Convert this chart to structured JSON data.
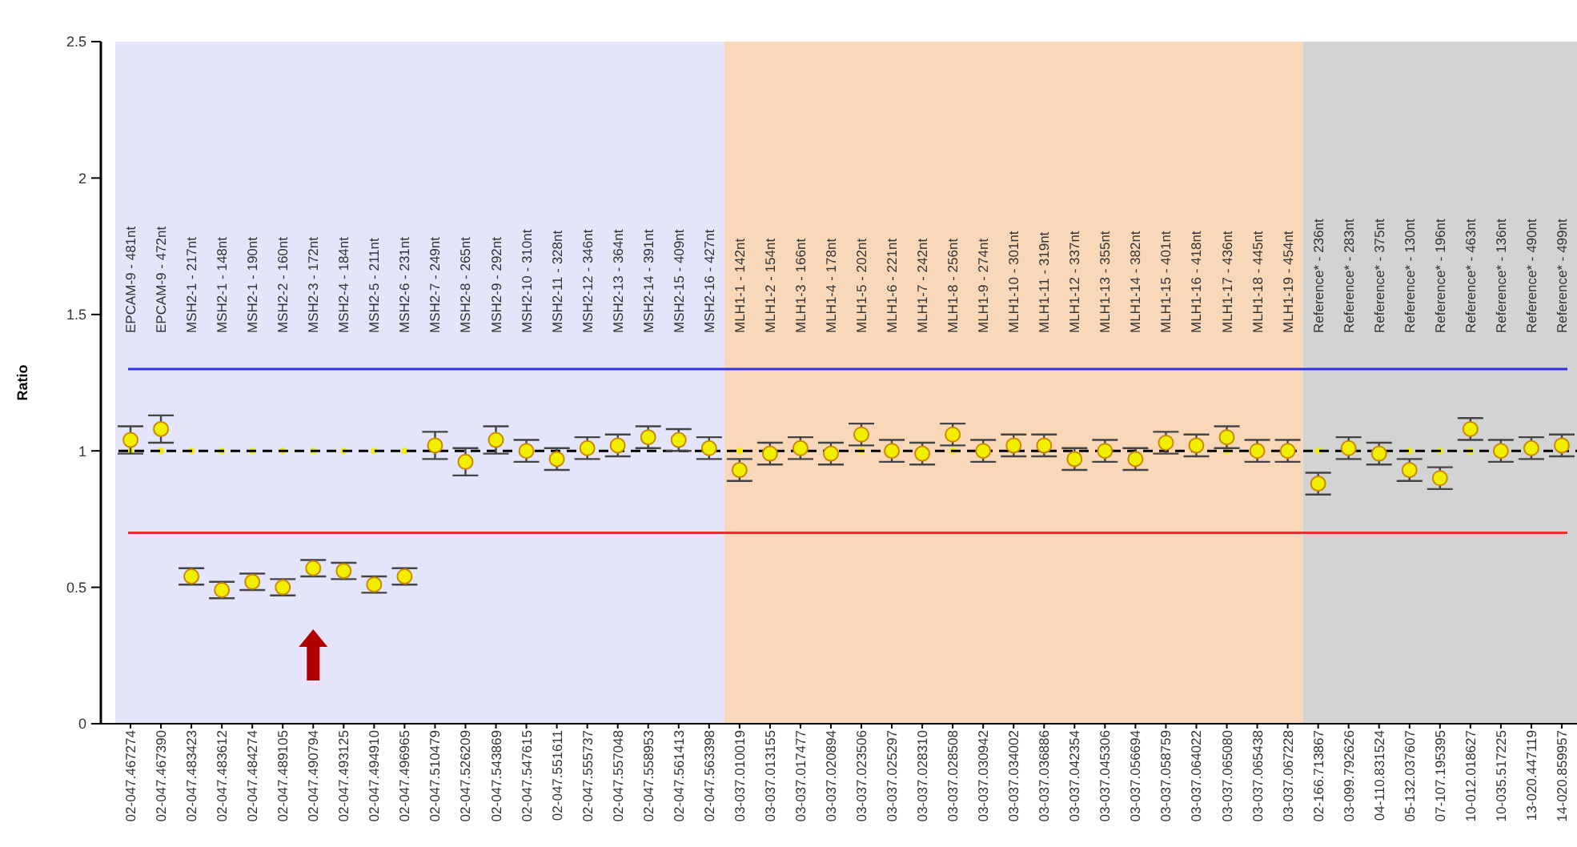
{
  "chart_data": {
    "type": "scatter",
    "ylabel": "Ratio",
    "categories": [
      "02-047.467274",
      "02-047.467390",
      "02-047.483423",
      "02-047.483612",
      "02-047.484274",
      "02-047.489105",
      "02-047.490794",
      "02-047.493125",
      "02-047.494910",
      "02-047.496965",
      "02-047.510479",
      "02-047.526209",
      "02-047.543869",
      "02-047.547615",
      "02-047.551611",
      "02-047.555737",
      "02-047.557048",
      "02-047.558953",
      "02-047.561413",
      "02-047.563398",
      "03-037.010019",
      "03-037.013155",
      "03-037.017477",
      "03-037.020894",
      "03-037.023506",
      "03-037.025297",
      "03-037.028310",
      "03-037.028508",
      "03-037.030942",
      "03-037.034002",
      "03-037.036886",
      "03-037.042354",
      "03-037.045306",
      "03-037.056694",
      "03-037.058759",
      "03-037.064022",
      "03-037.065080",
      "03-037.065438",
      "03-037.067228",
      "02-166.713867",
      "03-099.792626",
      "04-110.831524",
      "05-132.037607",
      "07-107.195395",
      "10-012.018627",
      "10-035.517225",
      "13-020.447119",
      "14-020.859957"
    ],
    "series": [
      {
        "color": "#f2ee00",
        "values": [
          1.04,
          1.08,
          0.54,
          0.49,
          0.52,
          0.5,
          0.57,
          0.56,
          0.51,
          0.54,
          1.02,
          0.96,
          1.04,
          1.0,
          0.97,
          1.01,
          1.02,
          1.05,
          1.04,
          1.01,
          0.93,
          0.99,
          1.01,
          0.99,
          1.06,
          1.0,
          0.99,
          1.06,
          1.0,
          1.02,
          1.02,
          0.97,
          1.0,
          0.97,
          1.03,
          1.02,
          1.05,
          1.0,
          1.0,
          0.88,
          1.01,
          0.99,
          0.93,
          0.9,
          1.08,
          1.0,
          1.01,
          1.02
        ],
        "errors": [
          0.05,
          0.05,
          0.03,
          0.03,
          0.03,
          0.03,
          0.03,
          0.03,
          0.03,
          0.03,
          0.05,
          0.05,
          0.05,
          0.04,
          0.04,
          0.04,
          0.04,
          0.04,
          0.04,
          0.04,
          0.04,
          0.04,
          0.04,
          0.04,
          0.04,
          0.04,
          0.04,
          0.04,
          0.04,
          0.04,
          0.04,
          0.04,
          0.04,
          0.04,
          0.04,
          0.04,
          0.04,
          0.04,
          0.04,
          0.04,
          0.04,
          0.04,
          0.04,
          0.04,
          0.04,
          0.04,
          0.04,
          0.04
        ]
      },
      {
        "color": "#f2ee00",
        "values": [
          1,
          1,
          1,
          1,
          1,
          1,
          1,
          1,
          1,
          1,
          null,
          null,
          null,
          null,
          null,
          null,
          null,
          null,
          null,
          null,
          1,
          null,
          null,
          null,
          1,
          null,
          null,
          1,
          null,
          null,
          null,
          null,
          null,
          null,
          null,
          null,
          1,
          null,
          null,
          1,
          null,
          null,
          1,
          1,
          1,
          null,
          null,
          null
        ]
      }
    ],
    "ylim": [
      0,
      2.5
    ],
    "yticks": [
      0,
      0.5,
      1,
      1.5,
      2,
      2.5
    ],
    "marker": "circle",
    "ref_lines": [
      {
        "axis": "y",
        "value": 1.3,
        "color": "#3333dd",
        "line_style": "solid"
      },
      {
        "axis": "y",
        "value": 0.7,
        "color": "#e83030",
        "line_style": "solid"
      },
      {
        "axis": "y",
        "value": 1,
        "color": "#000000",
        "line_style": "dashed"
      }
    ],
    "bands": [
      {
        "axis": "x",
        "from": "02-047.467274",
        "to": "02-047.563398",
        "color": "#e4e4fa"
      },
      {
        "axis": "x",
        "from": "03-037.010019",
        "to": "03-037.067228",
        "color": "#f9d8ba"
      },
      {
        "axis": "x",
        "from": "02-166.713867",
        "to": "14-020.859957",
        "color": "#d3d3d3"
      }
    ],
    "annotations": [
      "EPCAM-9 - 481nt",
      "EPCAM-9 - 472nt",
      "MSH2-1 - 217nt",
      "MSH2-1 - 148nt",
      "MSH2-1 - 190nt",
      "MSH2-2 - 160nt",
      "MSH2-3 - 172nt",
      "MSH2-4 - 184nt",
      "MSH2-5 - 211nt",
      "MSH2-6 - 231nt",
      "MSH2-7 - 249nt",
      "MSH2-8 - 265nt",
      "MSH2-9 - 292nt",
      "MSH2-10 - 310nt",
      "MSH2-11 - 328nt",
      "MSH2-12 - 346nt",
      "MSH2-13 - 364nt",
      "MSH2-14 - 391nt",
      "MSH2-15 - 409nt",
      "MSH2-16 - 427nt",
      "MLH1-1 - 142nt",
      "MLH1-2 - 154nt",
      "MLH1-3 - 166nt",
      "MLH1-4 - 178nt",
      "MLH1-5 - 202nt",
      "MLH1-6 - 221nt",
      "MLH1-7 - 242nt",
      "MLH1-8 - 256nt",
      "MLH1-9 - 274nt",
      "MLH1-10 - 301nt",
      "MLH1-11 - 319nt",
      "MLH1-12 - 337nt",
      "MLH1-13 - 355nt",
      "MLH1-14 - 382nt",
      "MLH1-15 - 401nt",
      "MLH1-16 - 418nt",
      "MLH1-17 - 436nt",
      "MLH1-18 - 445nt",
      "MLH1-19 - 454nt",
      "Reference* - 236nt",
      "Reference* - 283nt",
      "Reference* - 375nt",
      "Reference* - 130nt",
      "Reference* - 196nt",
      "Reference* - 463nt",
      "Reference* - 136nt",
      "Reference* - 490nt",
      "Reference* - 499nt"
    ]
  }
}
